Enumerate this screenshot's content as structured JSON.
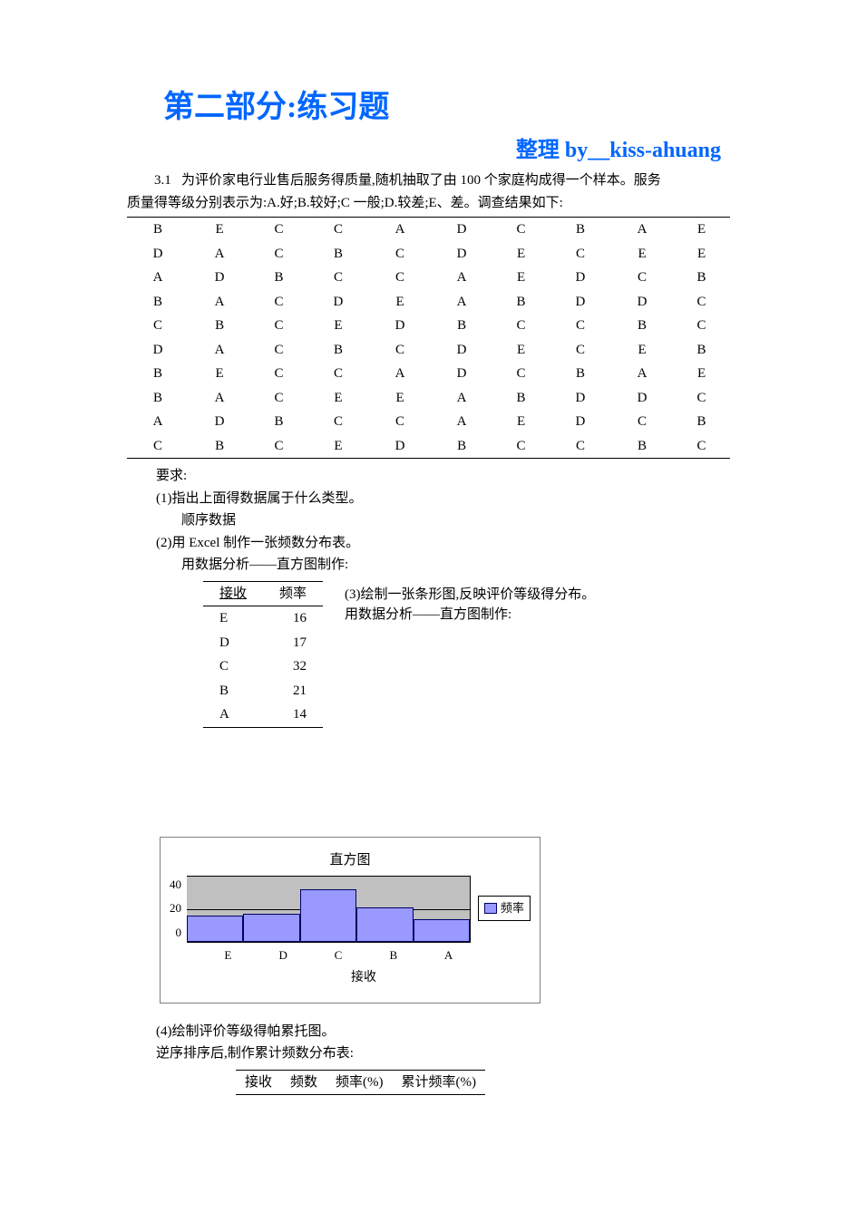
{
  "title": "第二部分:练习题",
  "author": "整理 by__kiss-ahuang",
  "question": {
    "number": "3.1",
    "intro_line1": "为评价家电行业售后服务得质量,随机抽取了由 100 个家庭构成得一个样本。服务",
    "intro_line2": "质量得等级分别表示为:A.好;B.较好;C 一般;D.较差;E、差。调查结果如下:"
  },
  "grid_rows": [
    [
      "B",
      "E",
      "C",
      "C",
      "A",
      "D",
      "C",
      "B",
      "A",
      "E"
    ],
    [
      "D",
      "A",
      "C",
      "B",
      "C",
      "D",
      "E",
      "C",
      "E",
      "E"
    ],
    [
      "A",
      "D",
      "B",
      "C",
      "C",
      "A",
      "E",
      "D",
      "C",
      "B"
    ],
    [
      "B",
      "A",
      "C",
      "D",
      "E",
      "A",
      "B",
      "D",
      "D",
      "C"
    ],
    [
      "C",
      "B",
      "C",
      "E",
      "D",
      "B",
      "C",
      "C",
      "B",
      "C"
    ],
    [
      "D",
      "A",
      "C",
      "B",
      "C",
      "D",
      "E",
      "C",
      "E",
      "B"
    ],
    [
      "B",
      "E",
      "C",
      "C",
      "A",
      "D",
      "C",
      "B",
      "A",
      "E"
    ],
    [
      "B",
      "A",
      "C",
      "E",
      "E",
      "A",
      "B",
      "D",
      "D",
      "C"
    ],
    [
      "A",
      "D",
      "B",
      "C",
      "C",
      "A",
      "E",
      "D",
      "C",
      "B"
    ],
    [
      "C",
      "B",
      "C",
      "E",
      "D",
      "B",
      "C",
      "C",
      "B",
      "C"
    ]
  ],
  "requirements": {
    "header": "要求:",
    "r1": "(1)指出上面得数据属于什么类型。",
    "r1_ans": "顺序数据",
    "r2": "(2)用 Excel 制作一张频数分布表。",
    "r2_sub": "用数据分析——直方图制作:",
    "r3": "(3)绘制一张条形图,反映评价等级得分布。",
    "r3_sub": "用数据分析——直方图制作:",
    "r4": "(4)绘制评价等级得帕累托图。",
    "r4_sub": "逆序排序后,制作累计频数分布表:"
  },
  "freq_table": {
    "col1": "接收",
    "col2": "频率",
    "rows": [
      {
        "bin": "E",
        "freq": "16"
      },
      {
        "bin": "D",
        "freq": "17"
      },
      {
        "bin": "C",
        "freq": "32"
      },
      {
        "bin": "B",
        "freq": "21"
      },
      {
        "bin": "A",
        "freq": "14"
      }
    ]
  },
  "chart": {
    "title": "直方图",
    "x_title": "接收",
    "legend_label": "频率",
    "y_ticks": [
      "40",
      "20",
      "0"
    ],
    "y_max": 40,
    "categories": [
      "E",
      "D",
      "C",
      "B",
      "A"
    ],
    "values": [
      16,
      17,
      32,
      21,
      14
    ],
    "bar_color": "#9999ff",
    "bar_border": "#000066",
    "plot_bg": "#c0c0c0",
    "grid_color": "#000000"
  },
  "pareto_table": {
    "columns": [
      "接收",
      "频数",
      "频率(%)",
      "累计频率(%)"
    ]
  }
}
